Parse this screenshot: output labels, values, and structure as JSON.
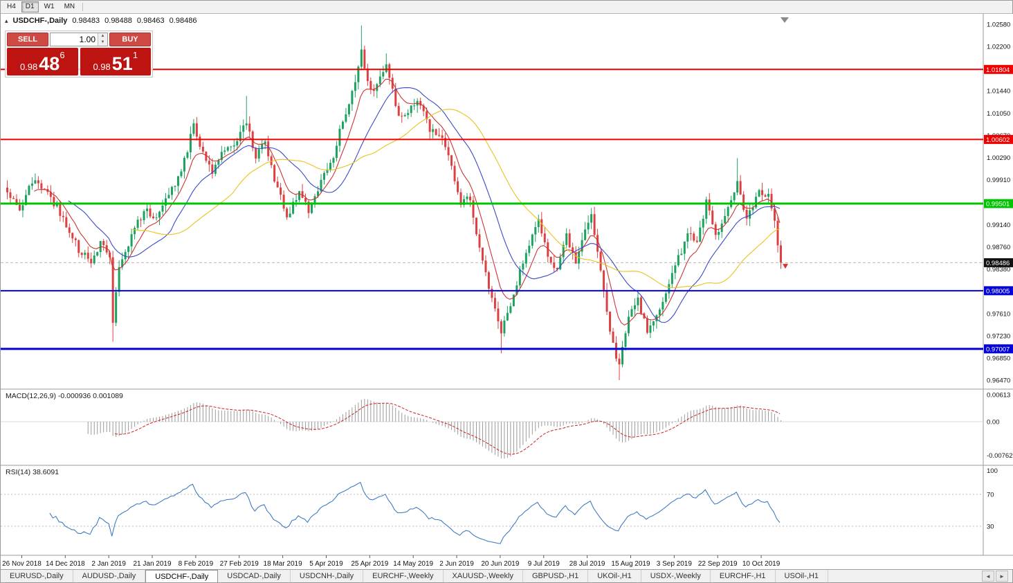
{
  "toolbar": {
    "timeframes": [
      "H4",
      "D1",
      "W1",
      "MN"
    ],
    "active": "D1"
  },
  "chart": {
    "title": "USDCHF-,Daily",
    "ohlc": {
      "open": "0.98483",
      "high": "0.98488",
      "low": "0.98463",
      "close": "0.98486"
    },
    "trade_panel": {
      "sell_label": "SELL",
      "buy_label": "BUY",
      "volume": "1.00",
      "bid_big": "0.98",
      "bid_pips": "48",
      "bid_sup": "6",
      "ask_big": "0.98",
      "ask_pips": "51",
      "ask_sup": "1"
    },
    "icons": {
      "collapse": "▴",
      "spin_up": "▲",
      "spin_down": "▼",
      "tab_left": "◄",
      "tab_right": "►"
    }
  },
  "chart_data": {
    "type": "candlestick",
    "symbol": "USDCHF-",
    "timeframe": "Daily",
    "bars": 250,
    "y_range": [
      0.9647,
      1.0258
    ],
    "price_axis_ticks": [
      "1.02580",
      "1.02200",
      "1.01820",
      "1.01440",
      "1.01050",
      "1.00670",
      "1.00290",
      "0.99910",
      "0.99530",
      "0.99140",
      "0.98760",
      "0.98380",
      "0.97990",
      "0.97610",
      "0.97230",
      "0.96850",
      "0.96470"
    ],
    "x_labels": [
      "26 Nov 2018",
      "14 Dec 2018",
      "2 Jan 2019",
      "21 Jan 2019",
      "8 Feb 2019",
      "27 Feb 2019",
      "18 Mar 2019",
      "5 Apr 2019",
      "25 Apr 2019",
      "14 May 2019",
      "2 Jun 2019",
      "20 Jun 2019",
      "9 Jul 2019",
      "28 Jul 2019",
      "15 Aug 2019",
      "3 Sep 2019",
      "22 Sep 2019",
      "10 Oct 2019"
    ],
    "layout": {
      "first_label_bar": 5,
      "bars_per_label": 14,
      "legend": "none",
      "grid": "off"
    },
    "swing_points": [
      [
        0,
        0.9968
      ],
      [
        4,
        0.9938
      ],
      [
        8,
        0.9988
      ],
      [
        12,
        0.9975
      ],
      [
        16,
        0.9945
      ],
      [
        20,
        0.9906
      ],
      [
        23,
        0.9872
      ],
      [
        27,
        0.985
      ],
      [
        30,
        0.9885
      ],
      [
        33,
        0.9862
      ],
      [
        34,
        0.9742
      ],
      [
        36,
        0.9845
      ],
      [
        40,
        0.9895
      ],
      [
        44,
        0.9938
      ],
      [
        48,
        0.9928
      ],
      [
        52,
        0.9962
      ],
      [
        56,
        1.0005
      ],
      [
        60,
        1.0082
      ],
      [
        62,
        1.005
      ],
      [
        66,
        1.0002
      ],
      [
        70,
        1.0042
      ],
      [
        74,
        1.006
      ],
      [
        77,
        1.0088
      ],
      [
        80,
        1.0032
      ],
      [
        83,
        1.0058
      ],
      [
        86,
        0.9992
      ],
      [
        90,
        0.9928
      ],
      [
        94,
        0.9968
      ],
      [
        97,
        0.9938
      ],
      [
        101,
        0.9988
      ],
      [
        105,
        1.0035
      ],
      [
        109,
        1.0108
      ],
      [
        112,
        1.016
      ],
      [
        114,
        1.0212
      ],
      [
        116,
        1.0155
      ],
      [
        118,
        1.0142
      ],
      [
        122,
        1.0192
      ],
      [
        126,
        1.0098
      ],
      [
        129,
        1.0112
      ],
      [
        132,
        1.0128
      ],
      [
        136,
        1.0078
      ],
      [
        141,
        1.0052
      ],
      [
        144,
        0.999
      ],
      [
        146,
        0.9948
      ],
      [
        149,
        0.9962
      ],
      [
        152,
        0.9872
      ],
      [
        155,
        0.9802
      ],
      [
        159,
        0.9728
      ],
      [
        163,
        0.9792
      ],
      [
        167,
        0.9872
      ],
      [
        171,
        0.9918
      ],
      [
        174,
        0.9862
      ],
      [
        177,
        0.9838
      ],
      [
        180,
        0.9895
      ],
      [
        183,
        0.9848
      ],
      [
        186,
        0.9908
      ],
      [
        188,
        0.9932
      ],
      [
        192,
        0.9802
      ],
      [
        195,
        0.9705
      ],
      [
        197,
        0.9675
      ],
      [
        200,
        0.9762
      ],
      [
        203,
        0.9788
      ],
      [
        206,
        0.9726
      ],
      [
        209,
        0.9758
      ],
      [
        212,
        0.9802
      ],
      [
        216,
        0.9855
      ],
      [
        219,
        0.9902
      ],
      [
        222,
        0.9878
      ],
      [
        225,
        0.9952
      ],
      [
        228,
        0.9892
      ],
      [
        231,
        0.9928
      ],
      [
        235,
        0.9982
      ],
      [
        238,
        0.9922
      ],
      [
        242,
        0.9968
      ],
      [
        245,
        0.9962
      ],
      [
        247,
        0.9918
      ],
      [
        249,
        0.98486
      ]
    ],
    "spikes": [
      {
        "i": 34,
        "low": 0.9713
      },
      {
        "i": 77,
        "high": 1.0135
      },
      {
        "i": 114,
        "high": 1.0256
      },
      {
        "i": 122,
        "high": 1.0208
      },
      {
        "i": 159,
        "low": 0.9693
      },
      {
        "i": 197,
        "low": 0.9647
      },
      {
        "i": 235,
        "high": 1.0028
      },
      {
        "i": 249,
        "low": 0.9838
      }
    ],
    "hlines": [
      {
        "price": 1.01804,
        "label": "1.01804",
        "color": "#ee0000",
        "width": 2
      },
      {
        "price": 1.00602,
        "label": "1.00602",
        "color": "#ee0000",
        "width": 2
      },
      {
        "price": 0.99501,
        "label": "0.99501",
        "color": "#00c400",
        "width": 3
      },
      {
        "price": 0.98005,
        "label": "0.98005",
        "color": "#0000d8",
        "width": 2
      },
      {
        "price": 0.97007,
        "label": "0.97007",
        "color": "#0000d8",
        "width": 3
      }
    ],
    "current_price": {
      "value": 0.98486,
      "label": "0.98486",
      "badge_color": "#111111"
    },
    "sell_marker": {
      "bar": 249,
      "price": 0.9843,
      "color": "#e03030"
    },
    "moving_averages": [
      {
        "name": "ema9",
        "period": 9,
        "type": "ema",
        "color": "#cc3333"
      },
      {
        "name": "sma20",
        "period": 20,
        "type": "sma",
        "color": "#3a49c8"
      },
      {
        "name": "sma40",
        "period": 40,
        "type": "sma",
        "color": "#e8c31e"
      }
    ],
    "indicators": {
      "macd": {
        "label": "MACD(12,26,9)",
        "values_text": "-0.000936 0.001089",
        "axis": [
          "0.00613",
          "0.00",
          "-0.00762"
        ],
        "fast": 12,
        "slow": 26,
        "signal": 9,
        "hist_color": "#9a9a9a",
        "signal_color": "#cc2222"
      },
      "rsi": {
        "label": "RSI(14)",
        "value_text": "38.6091",
        "axis": [
          "100",
          "70",
          "30"
        ],
        "period": 14,
        "levels": [
          70,
          30
        ],
        "color": "#3f7cc1"
      }
    },
    "candle_colors": {
      "up": "#1da15f",
      "down": "#dd4040"
    }
  },
  "tabs": {
    "items": [
      "EURUSD-,Daily",
      "AUDUSD-,Daily",
      "USDCHF-,Daily",
      "USDCAD-,Daily",
      "USDCNH-,Daily",
      "EURCHF-,Weekly",
      "XAUUSD-,Weekly",
      "GBPUSD-,H1",
      "UKOil-,H1",
      "USDX-,Weekly",
      "EURCHF-,H1",
      "USOil-,H1"
    ],
    "active_index": 2
  }
}
